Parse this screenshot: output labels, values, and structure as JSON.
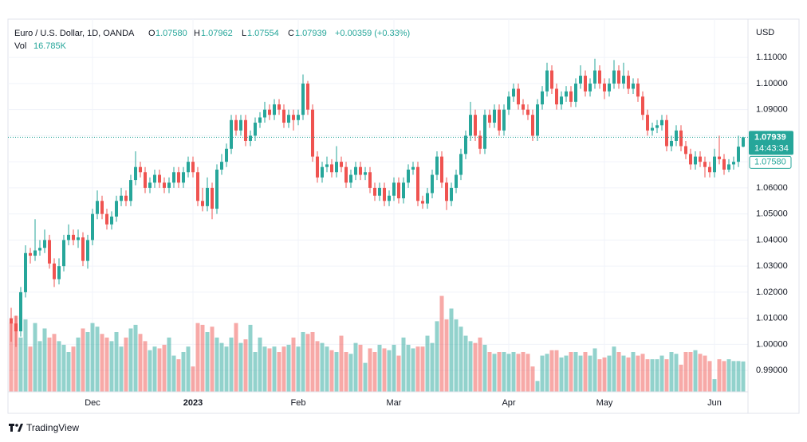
{
  "chart_data": {
    "type": "candlestick",
    "title": "Euro / U.S. Dollar, 1D, OANDA",
    "legend": {
      "o": "O",
      "open": "1.07580",
      "h": "H",
      "high": "1.07962",
      "l": "L",
      "low": "1.07554",
      "c": "C",
      "close": "1.07939",
      "change": "+0.00359 (+0.33%)",
      "vol": "Vol",
      "volume": "16.785K"
    },
    "axis_unit": "USD",
    "footer": "TradingView",
    "up_color": "#26a69a",
    "down_color": "#ef5350",
    "categories": [
      null,
      null,
      null,
      null,
      null,
      null,
      null,
      null,
      null,
      null,
      null,
      null,
      null,
      null,
      null,
      null,
      null,
      "Dec",
      null,
      null,
      null,
      null,
      null,
      null,
      null,
      null,
      null,
      null,
      null,
      null,
      null,
      null,
      null,
      null,
      null,
      null,
      null,
      null,
      "2023",
      null,
      null,
      null,
      null,
      null,
      null,
      null,
      null,
      null,
      null,
      null,
      null,
      null,
      null,
      null,
      null,
      null,
      null,
      null,
      null,
      null,
      "Feb",
      null,
      null,
      null,
      null,
      null,
      null,
      null,
      null,
      null,
      null,
      null,
      null,
      null,
      null,
      null,
      null,
      null,
      null,
      null,
      "Mar",
      null,
      null,
      null,
      null,
      null,
      null,
      null,
      null,
      null,
      null,
      null,
      null,
      null,
      null,
      null,
      null,
      null,
      null,
      null,
      null,
      null,
      null,
      null,
      "Apr",
      null,
      null,
      null,
      null,
      null,
      null,
      null,
      null,
      null,
      null,
      null,
      null,
      null,
      null,
      null,
      null,
      null,
      null,
      null,
      "May",
      null,
      null,
      null,
      null,
      null,
      null,
      null,
      null,
      null,
      null,
      null,
      null,
      null,
      null,
      null,
      null,
      null,
      null,
      null,
      null,
      null,
      null,
      "Jun",
      null,
      null,
      null,
      null,
      null,
      null
    ],
    "open": [
      1.01,
      1.008,
      1.005,
      1.02,
      1.035,
      1.034,
      1.036,
      1.037,
      1.04,
      1.031,
      1.025,
      1.03,
      1.04,
      1.042,
      1.04,
      1.041,
      1.032,
      1.04,
      1.05,
      1.055,
      1.05,
      1.046,
      1.049,
      1.055,
      1.057,
      1.055,
      1.063,
      1.068,
      1.066,
      1.06,
      1.062,
      1.065,
      1.062,
      1.06,
      1.062,
      1.066,
      1.062,
      1.066,
      1.07,
      1.066,
      1.055,
      1.053,
      1.06,
      1.052,
      1.067,
      1.07,
      1.075,
      1.086,
      1.082,
      1.086,
      1.078,
      1.08,
      1.085,
      1.087,
      1.09,
      1.088,
      1.092,
      1.09,
      1.085,
      1.088,
      1.086,
      1.088,
      1.1,
      1.09,
      1.072,
      1.064,
      1.068,
      1.069,
      1.066,
      1.07,
      1.068,
      1.062,
      1.065,
      1.068,
      1.065,
      1.066,
      1.06,
      1.057,
      1.06,
      1.055,
      1.057,
      1.062,
      1.056,
      1.062,
      1.067,
      1.068,
      1.055,
      1.054,
      1.058,
      1.065,
      1.072,
      1.062,
      1.055,
      1.06,
      1.065,
      1.073,
      1.08,
      1.088,
      1.08,
      1.075,
      1.088,
      1.085,
      1.09,
      1.082,
      1.09,
      1.095,
      1.098,
      1.092,
      1.09,
      1.088,
      1.08,
      1.092,
      1.097,
      1.105,
      1.098,
      1.092,
      1.095,
      1.097,
      1.093,
      1.1,
      1.103,
      1.097,
      1.1,
      1.105,
      1.1,
      1.097,
      1.1,
      1.105,
      1.1,
      1.103,
      1.098,
      1.1,
      1.095,
      1.088,
      1.082,
      1.083,
      1.084,
      1.086,
      1.076,
      1.078,
      1.082,
      1.076,
      1.073,
      1.069,
      1.072,
      1.07,
      1.068,
      1.066,
      1.072,
      1.071,
      1.067,
      1.069,
      1.07,
      1.0758
    ],
    "high": [
      1.014,
      1.011,
      1.022,
      1.038,
      1.037,
      1.048,
      1.04,
      1.044,
      1.042,
      1.033,
      1.033,
      1.042,
      1.046,
      1.044,
      1.044,
      1.043,
      1.042,
      1.052,
      1.059,
      1.057,
      1.052,
      1.051,
      1.057,
      1.06,
      1.059,
      1.065,
      1.074,
      1.07,
      1.068,
      1.064,
      1.067,
      1.067,
      1.064,
      1.064,
      1.068,
      1.068,
      1.068,
      1.072,
      1.072,
      1.068,
      1.06,
      1.064,
      1.062,
      1.069,
      1.073,
      1.077,
      1.088,
      1.088,
      1.088,
      1.088,
      1.082,
      1.087,
      1.089,
      1.093,
      1.092,
      1.094,
      1.094,
      1.092,
      1.09,
      1.09,
      1.09,
      1.1035,
      1.101,
      1.092,
      1.074,
      1.07,
      1.072,
      1.071,
      1.076,
      1.072,
      1.07,
      1.067,
      1.07,
      1.07,
      1.068,
      1.068,
      1.062,
      1.062,
      1.062,
      1.059,
      1.064,
      1.064,
      1.064,
      1.069,
      1.07,
      1.07,
      1.057,
      1.06,
      1.067,
      1.074,
      1.074,
      1.064,
      1.062,
      1.067,
      1.075,
      1.082,
      1.093,
      1.09,
      1.082,
      1.09,
      1.09,
      1.092,
      1.092,
      1.092,
      1.097,
      1.1,
      1.1,
      1.094,
      1.092,
      1.09,
      1.094,
      1.099,
      1.108,
      1.107,
      1.1,
      1.097,
      1.099,
      1.099,
      1.102,
      1.107,
      1.105,
      1.102,
      1.1095,
      1.107,
      1.102,
      1.102,
      1.109,
      1.107,
      1.108,
      1.105,
      1.102,
      1.102,
      1.097,
      1.09,
      1.085,
      1.086,
      1.088,
      1.088,
      1.08,
      1.084,
      1.084,
      1.078,
      1.075,
      1.074,
      1.074,
      1.072,
      1.07,
      1.075,
      1.08,
      1.073,
      1.071,
      1.072,
      1.08,
      1.07962
    ],
    "low": [
      1.001,
      0.999,
      1.003,
      1.018,
      1.031,
      1.032,
      1.034,
      1.035,
      1.029,
      1.022,
      1.023,
      1.028,
      1.038,
      1.038,
      1.037,
      1.03,
      1.029,
      1.038,
      1.048,
      1.048,
      1.044,
      1.044,
      1.047,
      1.053,
      1.053,
      1.053,
      1.061,
      1.064,
      1.058,
      1.058,
      1.06,
      1.06,
      1.058,
      1.058,
      1.06,
      1.06,
      1.06,
      1.064,
      1.064,
      1.053,
      1.051,
      1.051,
      1.048,
      1.05,
      1.065,
      1.068,
      1.073,
      1.08,
      1.08,
      1.076,
      1.076,
      1.078,
      1.083,
      1.085,
      1.086,
      1.086,
      1.088,
      1.083,
      1.083,
      1.082,
      1.084,
      1.086,
      1.088,
      1.07,
      1.062,
      1.062,
      1.066,
      1.064,
      1.064,
      1.066,
      1.06,
      1.06,
      1.063,
      1.063,
      1.063,
      1.058,
      1.055,
      1.055,
      1.053,
      1.053,
      1.055,
      1.054,
      1.054,
      1.06,
      1.065,
      1.053,
      1.052,
      1.052,
      1.056,
      1.063,
      1.06,
      1.0515,
      1.053,
      1.058,
      1.063,
      1.071,
      1.078,
      1.078,
      1.073,
      1.073,
      1.083,
      1.083,
      1.08,
      1.08,
      1.088,
      1.093,
      1.09,
      1.088,
      1.086,
      1.078,
      1.078,
      1.09,
      1.095,
      1.096,
      1.09,
      1.09,
      1.093,
      1.091,
      1.091,
      1.098,
      1.095,
      1.095,
      1.098,
      1.098,
      1.094,
      1.095,
      1.098,
      1.098,
      1.098,
      1.096,
      1.096,
      1.093,
      1.086,
      1.08,
      1.08,
      1.081,
      1.082,
      1.074,
      1.074,
      1.076,
      1.074,
      1.071,
      1.067,
      1.067,
      1.068,
      1.064,
      1.064,
      1.064,
      1.069,
      1.065,
      1.066,
      1.067,
      1.068,
      1.07554
    ],
    "close": [
      1.008,
      1.005,
      1.02,
      1.035,
      1.034,
      1.036,
      1.037,
      1.04,
      1.031,
      1.025,
      1.03,
      1.04,
      1.042,
      1.04,
      1.041,
      1.032,
      1.04,
      1.05,
      1.055,
      1.05,
      1.046,
      1.049,
      1.055,
      1.057,
      1.055,
      1.063,
      1.068,
      1.066,
      1.06,
      1.062,
      1.065,
      1.062,
      1.06,
      1.062,
      1.066,
      1.062,
      1.066,
      1.07,
      1.066,
      1.055,
      1.053,
      1.06,
      1.052,
      1.067,
      1.07,
      1.075,
      1.086,
      1.082,
      1.086,
      1.078,
      1.08,
      1.085,
      1.087,
      1.09,
      1.088,
      1.092,
      1.09,
      1.085,
      1.088,
      1.086,
      1.088,
      1.1,
      1.09,
      1.072,
      1.064,
      1.068,
      1.069,
      1.066,
      1.07,
      1.068,
      1.062,
      1.065,
      1.068,
      1.065,
      1.066,
      1.06,
      1.057,
      1.06,
      1.055,
      1.057,
      1.062,
      1.056,
      1.062,
      1.067,
      1.068,
      1.055,
      1.054,
      1.058,
      1.065,
      1.072,
      1.062,
      1.055,
      1.06,
      1.065,
      1.073,
      1.08,
      1.088,
      1.08,
      1.075,
      1.088,
      1.085,
      1.09,
      1.082,
      1.09,
      1.095,
      1.098,
      1.092,
      1.09,
      1.088,
      1.08,
      1.092,
      1.097,
      1.105,
      1.098,
      1.092,
      1.095,
      1.097,
      1.093,
      1.1,
      1.103,
      1.097,
      1.1,
      1.105,
      1.1,
      1.097,
      1.1,
      1.105,
      1.1,
      1.103,
      1.098,
      1.1,
      1.095,
      1.088,
      1.082,
      1.083,
      1.084,
      1.086,
      1.076,
      1.078,
      1.082,
      1.076,
      1.073,
      1.069,
      1.072,
      1.07,
      1.068,
      1.066,
      1.072,
      1.071,
      1.067,
      1.069,
      1.07,
      1.0758,
      1.07939
    ],
    "volume": [
      38,
      42,
      30,
      40,
      25,
      38,
      28,
      35,
      30,
      32,
      28,
      26,
      22,
      25,
      30,
      35,
      33,
      38,
      36,
      32,
      30,
      28,
      33,
      25,
      30,
      35,
      37,
      32,
      28,
      23,
      25,
      24,
      26,
      30,
      20,
      18,
      22,
      25,
      14,
      38,
      37,
      33,
      36,
      30,
      27,
      25,
      30,
      38,
      27,
      29,
      37,
      22,
      30,
      25,
      24,
      25,
      22,
      25,
      26,
      30,
      25,
      33,
      32,
      33,
      28,
      27,
      25,
      23,
      22,
      31,
      22,
      21,
      27,
      26,
      16,
      24,
      22,
      26,
      24,
      23,
      26,
      20,
      30,
      26,
      24,
      25,
      25,
      31,
      27,
      39,
      53,
      40,
      46,
      40,
      36,
      31,
      28,
      27,
      30,
      26,
      22,
      21,
      22,
      22,
      21,
      22,
      21,
      22,
      21,
      14,
      6,
      20,
      21,
      23,
      23,
      19,
      20,
      22,
      22,
      20,
      22,
      20,
      24,
      18,
      19,
      20,
      25,
      22,
      20,
      19,
      22,
      20,
      21,
      18,
      18,
      18,
      20,
      18,
      22,
      21,
      15,
      22,
      22,
      23,
      21,
      20,
      17,
      7,
      18,
      17,
      18,
      17,
      17,
      16.785
    ],
    "volume_lim": [
      0,
      55
    ],
    "ylim": [
      0.9818,
      1.1244
    ],
    "yticks": [
      {
        "value": 0.99,
        "label": "0.99000"
      },
      {
        "value": 1.0,
        "label": "1.00000"
      },
      {
        "value": 1.01,
        "label": "1.01000"
      },
      {
        "value": 1.02,
        "label": "1.02000"
      },
      {
        "value": 1.03,
        "label": "1.03000"
      },
      {
        "value": 1.04,
        "label": "1.04000"
      },
      {
        "value": 1.05,
        "label": "1.05000"
      },
      {
        "value": 1.06,
        "label": "1.06000"
      },
      {
        "value": 1.07,
        "label": "1.07000"
      },
      {
        "value": 1.08,
        "label": "1.08000"
      },
      {
        "value": 1.09,
        "label": "1.09000"
      },
      {
        "value": 1.1,
        "label": "1.10000"
      },
      {
        "value": 1.11,
        "label": "1.11000"
      }
    ],
    "grid": true,
    "last_price": {
      "value": 1.07939,
      "label": "1.07939"
    },
    "countdown": "14:43:34",
    "open_marker": {
      "value": 1.0758,
      "label": "1.07580"
    }
  }
}
